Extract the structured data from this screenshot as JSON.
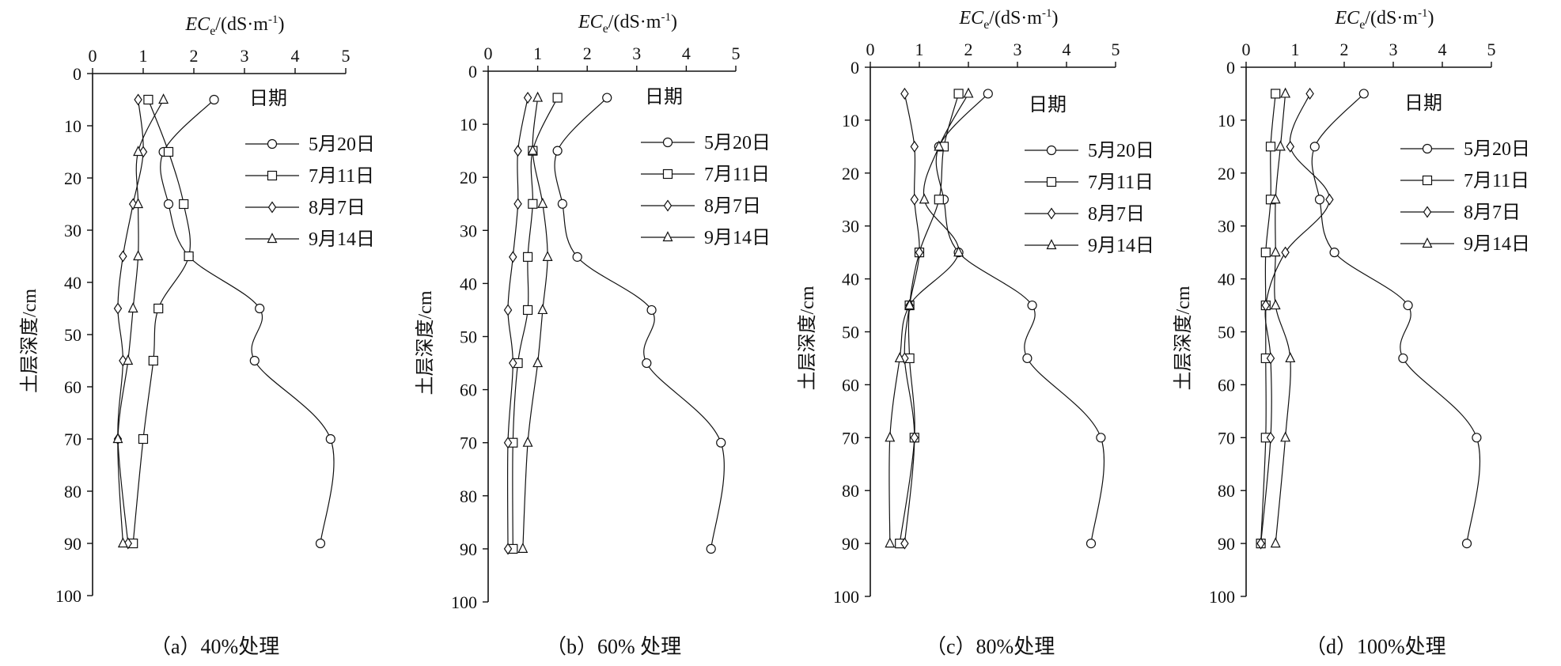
{
  "chart_data": [
    {
      "type": "line",
      "panel_label": "（a）40%处理",
      "xlabel_italic": "EC",
      "xlabel_sub": "e",
      "xlabel_unit_prefix": "/(dS·m",
      "xlabel_unit_sup": "-1",
      "xlabel_unit_suffix": ")",
      "ylabel": "土层深度/cm",
      "xlim": [
        0,
        5
      ],
      "ylim": [
        0,
        100
      ],
      "x_ticks": [
        0,
        1,
        2,
        3,
        4,
        5
      ],
      "y_ticks": [
        0,
        10,
        20,
        30,
        40,
        50,
        60,
        70,
        80,
        90,
        100
      ],
      "x_axis_position": "top",
      "y_axis_inverted": true,
      "legend_title": "日期",
      "legend_position": "top-right",
      "depth": [
        5,
        15,
        25,
        35,
        45,
        55,
        70,
        90
      ],
      "series": [
        {
          "name": "5月20日",
          "marker": "circle",
          "values": [
            2.4,
            1.4,
            1.5,
            1.9,
            3.3,
            3.2,
            4.7,
            4.5
          ]
        },
        {
          "name": "7月11日",
          "marker": "square",
          "values": [
            1.1,
            1.5,
            1.8,
            1.9,
            1.3,
            1.2,
            1.0,
            0.8
          ]
        },
        {
          "name": "8月7日",
          "marker": "diamond",
          "values": [
            0.9,
            1.0,
            0.8,
            0.6,
            0.5,
            0.6,
            0.5,
            0.7
          ]
        },
        {
          "name": "9月14日",
          "marker": "triangle",
          "values": [
            1.4,
            0.9,
            0.9,
            0.9,
            0.8,
            0.7,
            0.5,
            0.6
          ]
        }
      ]
    },
    {
      "type": "line",
      "panel_label": "（b）60% 处理",
      "xlabel_italic": "EC",
      "xlabel_sub": "e",
      "xlabel_unit_prefix": "/(dS·m",
      "xlabel_unit_sup": "-1",
      "xlabel_unit_suffix": ")",
      "ylabel": "土层深度/cm",
      "xlim": [
        0,
        5
      ],
      "ylim": [
        0,
        100
      ],
      "x_ticks": [
        0,
        1,
        2,
        3,
        4,
        5
      ],
      "y_ticks": [
        0,
        10,
        20,
        30,
        40,
        50,
        60,
        70,
        80,
        90,
        100
      ],
      "x_axis_position": "top",
      "y_axis_inverted": true,
      "legend_title": "日期",
      "legend_position": "top-right",
      "depth": [
        5,
        15,
        25,
        35,
        45,
        55,
        70,
        90
      ],
      "series": [
        {
          "name": "5月20日",
          "marker": "circle",
          "values": [
            2.4,
            1.4,
            1.5,
            1.8,
            3.3,
            3.2,
            4.7,
            4.5
          ]
        },
        {
          "name": "7月11日",
          "marker": "square",
          "values": [
            1.4,
            0.9,
            0.9,
            0.8,
            0.8,
            0.6,
            0.5,
            0.5
          ]
        },
        {
          "name": "8月7日",
          "marker": "diamond",
          "values": [
            0.8,
            0.6,
            0.6,
            0.5,
            0.4,
            0.5,
            0.4,
            0.4
          ]
        },
        {
          "name": "9月14日",
          "marker": "triangle",
          "values": [
            1.0,
            0.9,
            1.1,
            1.2,
            1.1,
            1.0,
            0.8,
            0.7
          ]
        }
      ]
    },
    {
      "type": "line",
      "panel_label": "（c）80%处理",
      "xlabel_italic": "EC",
      "xlabel_sub": "e",
      "xlabel_unit_prefix": "/(dS·m",
      "xlabel_unit_sup": "-1",
      "xlabel_unit_suffix": ")",
      "ylabel": "土层深度/cm",
      "xlim": [
        0,
        5
      ],
      "ylim": [
        0,
        100
      ],
      "x_ticks": [
        0,
        1,
        2,
        3,
        4,
        5
      ],
      "y_ticks": [
        0,
        10,
        20,
        30,
        40,
        50,
        60,
        70,
        80,
        90,
        100
      ],
      "x_axis_position": "top",
      "y_axis_inverted": true,
      "legend_title": "日期",
      "legend_position": "top-right",
      "depth": [
        5,
        15,
        25,
        35,
        45,
        55,
        70,
        90
      ],
      "series": [
        {
          "name": "5月20日",
          "marker": "circle",
          "values": [
            2.4,
            1.4,
            1.5,
            1.8,
            3.3,
            3.2,
            4.7,
            4.5
          ]
        },
        {
          "name": "7月11日",
          "marker": "square",
          "values": [
            1.8,
            1.5,
            1.4,
            1.0,
            0.8,
            0.8,
            0.9,
            0.6
          ]
        },
        {
          "name": "8月7日",
          "marker": "diamond",
          "values": [
            0.7,
            0.9,
            0.9,
            1.0,
            0.8,
            0.7,
            0.9,
            0.7
          ]
        },
        {
          "name": "9月14日",
          "marker": "triangle",
          "values": [
            2.0,
            1.4,
            1.1,
            1.8,
            0.8,
            0.6,
            0.4,
            0.4
          ]
        }
      ]
    },
    {
      "type": "line",
      "panel_label": "（d）100%处理",
      "xlabel_italic": "EC",
      "xlabel_sub": "e",
      "xlabel_unit_prefix": "/(dS·m",
      "xlabel_unit_sup": "-1",
      "xlabel_unit_suffix": ")",
      "ylabel": "土层深度/cm",
      "xlim": [
        0,
        5
      ],
      "ylim": [
        0,
        100
      ],
      "x_ticks": [
        0,
        1,
        2,
        3,
        4,
        5
      ],
      "y_ticks": [
        0,
        10,
        20,
        30,
        40,
        50,
        60,
        70,
        80,
        90,
        100
      ],
      "x_axis_position": "top",
      "y_axis_inverted": true,
      "legend_title": "日期",
      "legend_position": "top-right",
      "depth": [
        5,
        15,
        25,
        35,
        45,
        55,
        70,
        90
      ],
      "series": [
        {
          "name": "5月20日",
          "marker": "circle",
          "values": [
            2.4,
            1.4,
            1.5,
            1.8,
            3.3,
            3.2,
            4.7,
            4.5
          ]
        },
        {
          "name": "7月11日",
          "marker": "square",
          "values": [
            0.6,
            0.5,
            0.5,
            0.4,
            0.4,
            0.4,
            0.4,
            0.3
          ]
        },
        {
          "name": "8月7日",
          "marker": "diamond",
          "values": [
            1.3,
            0.9,
            1.7,
            0.8,
            0.4,
            0.5,
            0.5,
            0.3
          ]
        },
        {
          "name": "9月14日",
          "marker": "triangle",
          "values": [
            0.8,
            0.7,
            0.6,
            0.6,
            0.6,
            0.9,
            0.8,
            0.6
          ]
        }
      ]
    }
  ]
}
